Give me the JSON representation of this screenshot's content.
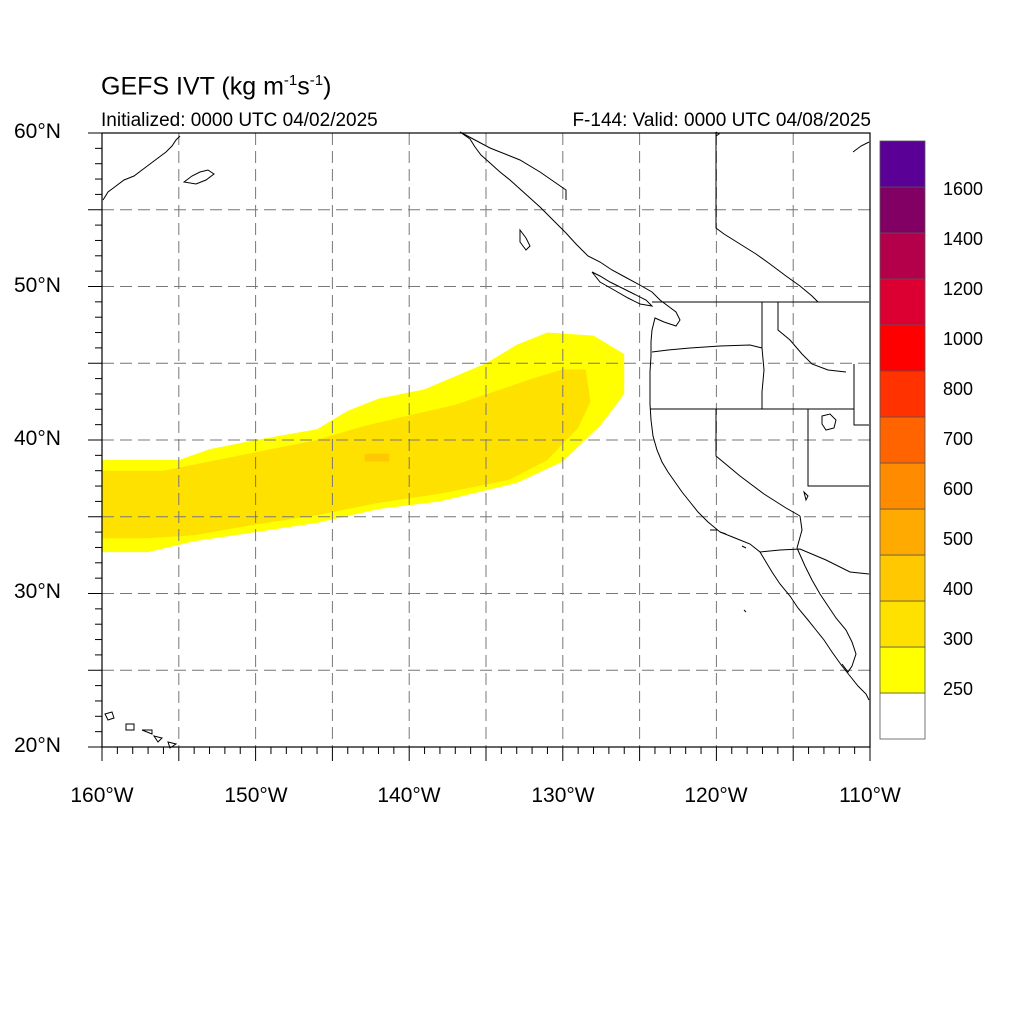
{
  "title": {
    "main_prefix": "GEFS IVT (kg m",
    "exp1": "-1",
    "mid": "s",
    "exp2": "-1",
    "suffix": ")",
    "initialized": "Initialized: 0000 UTC 04/02/2025",
    "valid": "F-144: Valid: 0000 UTC 04/08/2025"
  },
  "map": {
    "projection": "cylindrical equidistant",
    "lon_range": [
      -160,
      -110
    ],
    "lat_range": [
      20,
      60
    ],
    "grid": "dashed",
    "grid_lons": [
      -155,
      -150,
      -145,
      -140,
      -135,
      -130,
      -125,
      -120,
      -115
    ],
    "grid_lats": [
      25,
      30,
      35,
      40,
      45,
      50,
      55
    ],
    "lat_labels": [
      {
        "lat": 60,
        "text": "60°N"
      },
      {
        "lat": 50,
        "text": "50°N"
      },
      {
        "lat": 40,
        "text": "40°N"
      },
      {
        "lat": 30,
        "text": "30°N"
      },
      {
        "lat": 20,
        "text": "20°N"
      }
    ],
    "lon_labels": [
      {
        "lon": -160,
        "text": "160°W"
      },
      {
        "lon": -150,
        "text": "150°W"
      },
      {
        "lon": -140,
        "text": "140°W"
      },
      {
        "lon": -130,
        "text": "130°W"
      },
      {
        "lon": -120,
        "text": "120°W"
      },
      {
        "lon": -110,
        "text": "110°W"
      }
    ]
  },
  "ivt_field": {
    "units": "kg m-1 s-1",
    "levels": [
      {
        "name": "ivt-250-300",
        "polygon": [
          [
            -160,
            38.7
          ],
          [
            -155,
            38.7
          ],
          [
            -153,
            39.4
          ],
          [
            -150,
            40
          ],
          [
            -146,
            40.7
          ],
          [
            -144,
            41.9
          ],
          [
            -142,
            42.7
          ],
          [
            -139,
            43.3
          ],
          [
            -135,
            45
          ],
          [
            -133,
            46.2
          ],
          [
            -131,
            47
          ],
          [
            -128,
            46.8
          ],
          [
            -126,
            45.6
          ],
          [
            -126,
            43
          ],
          [
            -127.5,
            41
          ],
          [
            -130,
            38.6
          ],
          [
            -133,
            37.2
          ],
          [
            -138,
            36
          ],
          [
            -142,
            35.5
          ],
          [
            -146,
            34.6
          ],
          [
            -150,
            34
          ],
          [
            -154,
            33.4
          ],
          [
            -157,
            32.7
          ],
          [
            -160,
            32.7
          ]
        ]
      },
      {
        "name": "ivt-300-400",
        "polygon": [
          [
            -160,
            38
          ],
          [
            -156,
            38
          ],
          [
            -153,
            38.6
          ],
          [
            -150,
            39.2
          ],
          [
            -146,
            40
          ],
          [
            -143,
            40.9
          ],
          [
            -140,
            41.6
          ],
          [
            -137,
            42.3
          ],
          [
            -134,
            43.3
          ],
          [
            -132,
            44
          ],
          [
            -130,
            44.6
          ],
          [
            -128.5,
            44.6
          ],
          [
            -128.2,
            42.5
          ],
          [
            -129,
            40.8
          ],
          [
            -131,
            38.7
          ],
          [
            -133.5,
            37.4
          ],
          [
            -138,
            36.5
          ],
          [
            -142,
            35.9
          ],
          [
            -146,
            35.1
          ],
          [
            -150,
            34.5
          ],
          [
            -154,
            33.8
          ],
          [
            -157,
            33.6
          ],
          [
            -160,
            33.6
          ]
        ]
      },
      {
        "name": "ivt-400-500",
        "polygon": [
          [
            -142.9,
            39.1
          ],
          [
            -141.3,
            39.1
          ],
          [
            -141.3,
            38.6
          ],
          [
            -142.9,
            38.6
          ]
        ]
      }
    ]
  },
  "colorbar": {
    "bins": [
      "#ffffff",
      "#ffff00",
      "#ffe100",
      "#ffc800",
      "#ffaa00",
      "#ff8c00",
      "#ff6400",
      "#ff3200",
      "#ff0000",
      "#dc0032",
      "#b4004b",
      "#820064",
      "#5a0096"
    ],
    "labels": [
      "250",
      "300",
      "400",
      "500",
      "600",
      "700",
      "800",
      "1000",
      "1200",
      "1400",
      "1600"
    ]
  }
}
